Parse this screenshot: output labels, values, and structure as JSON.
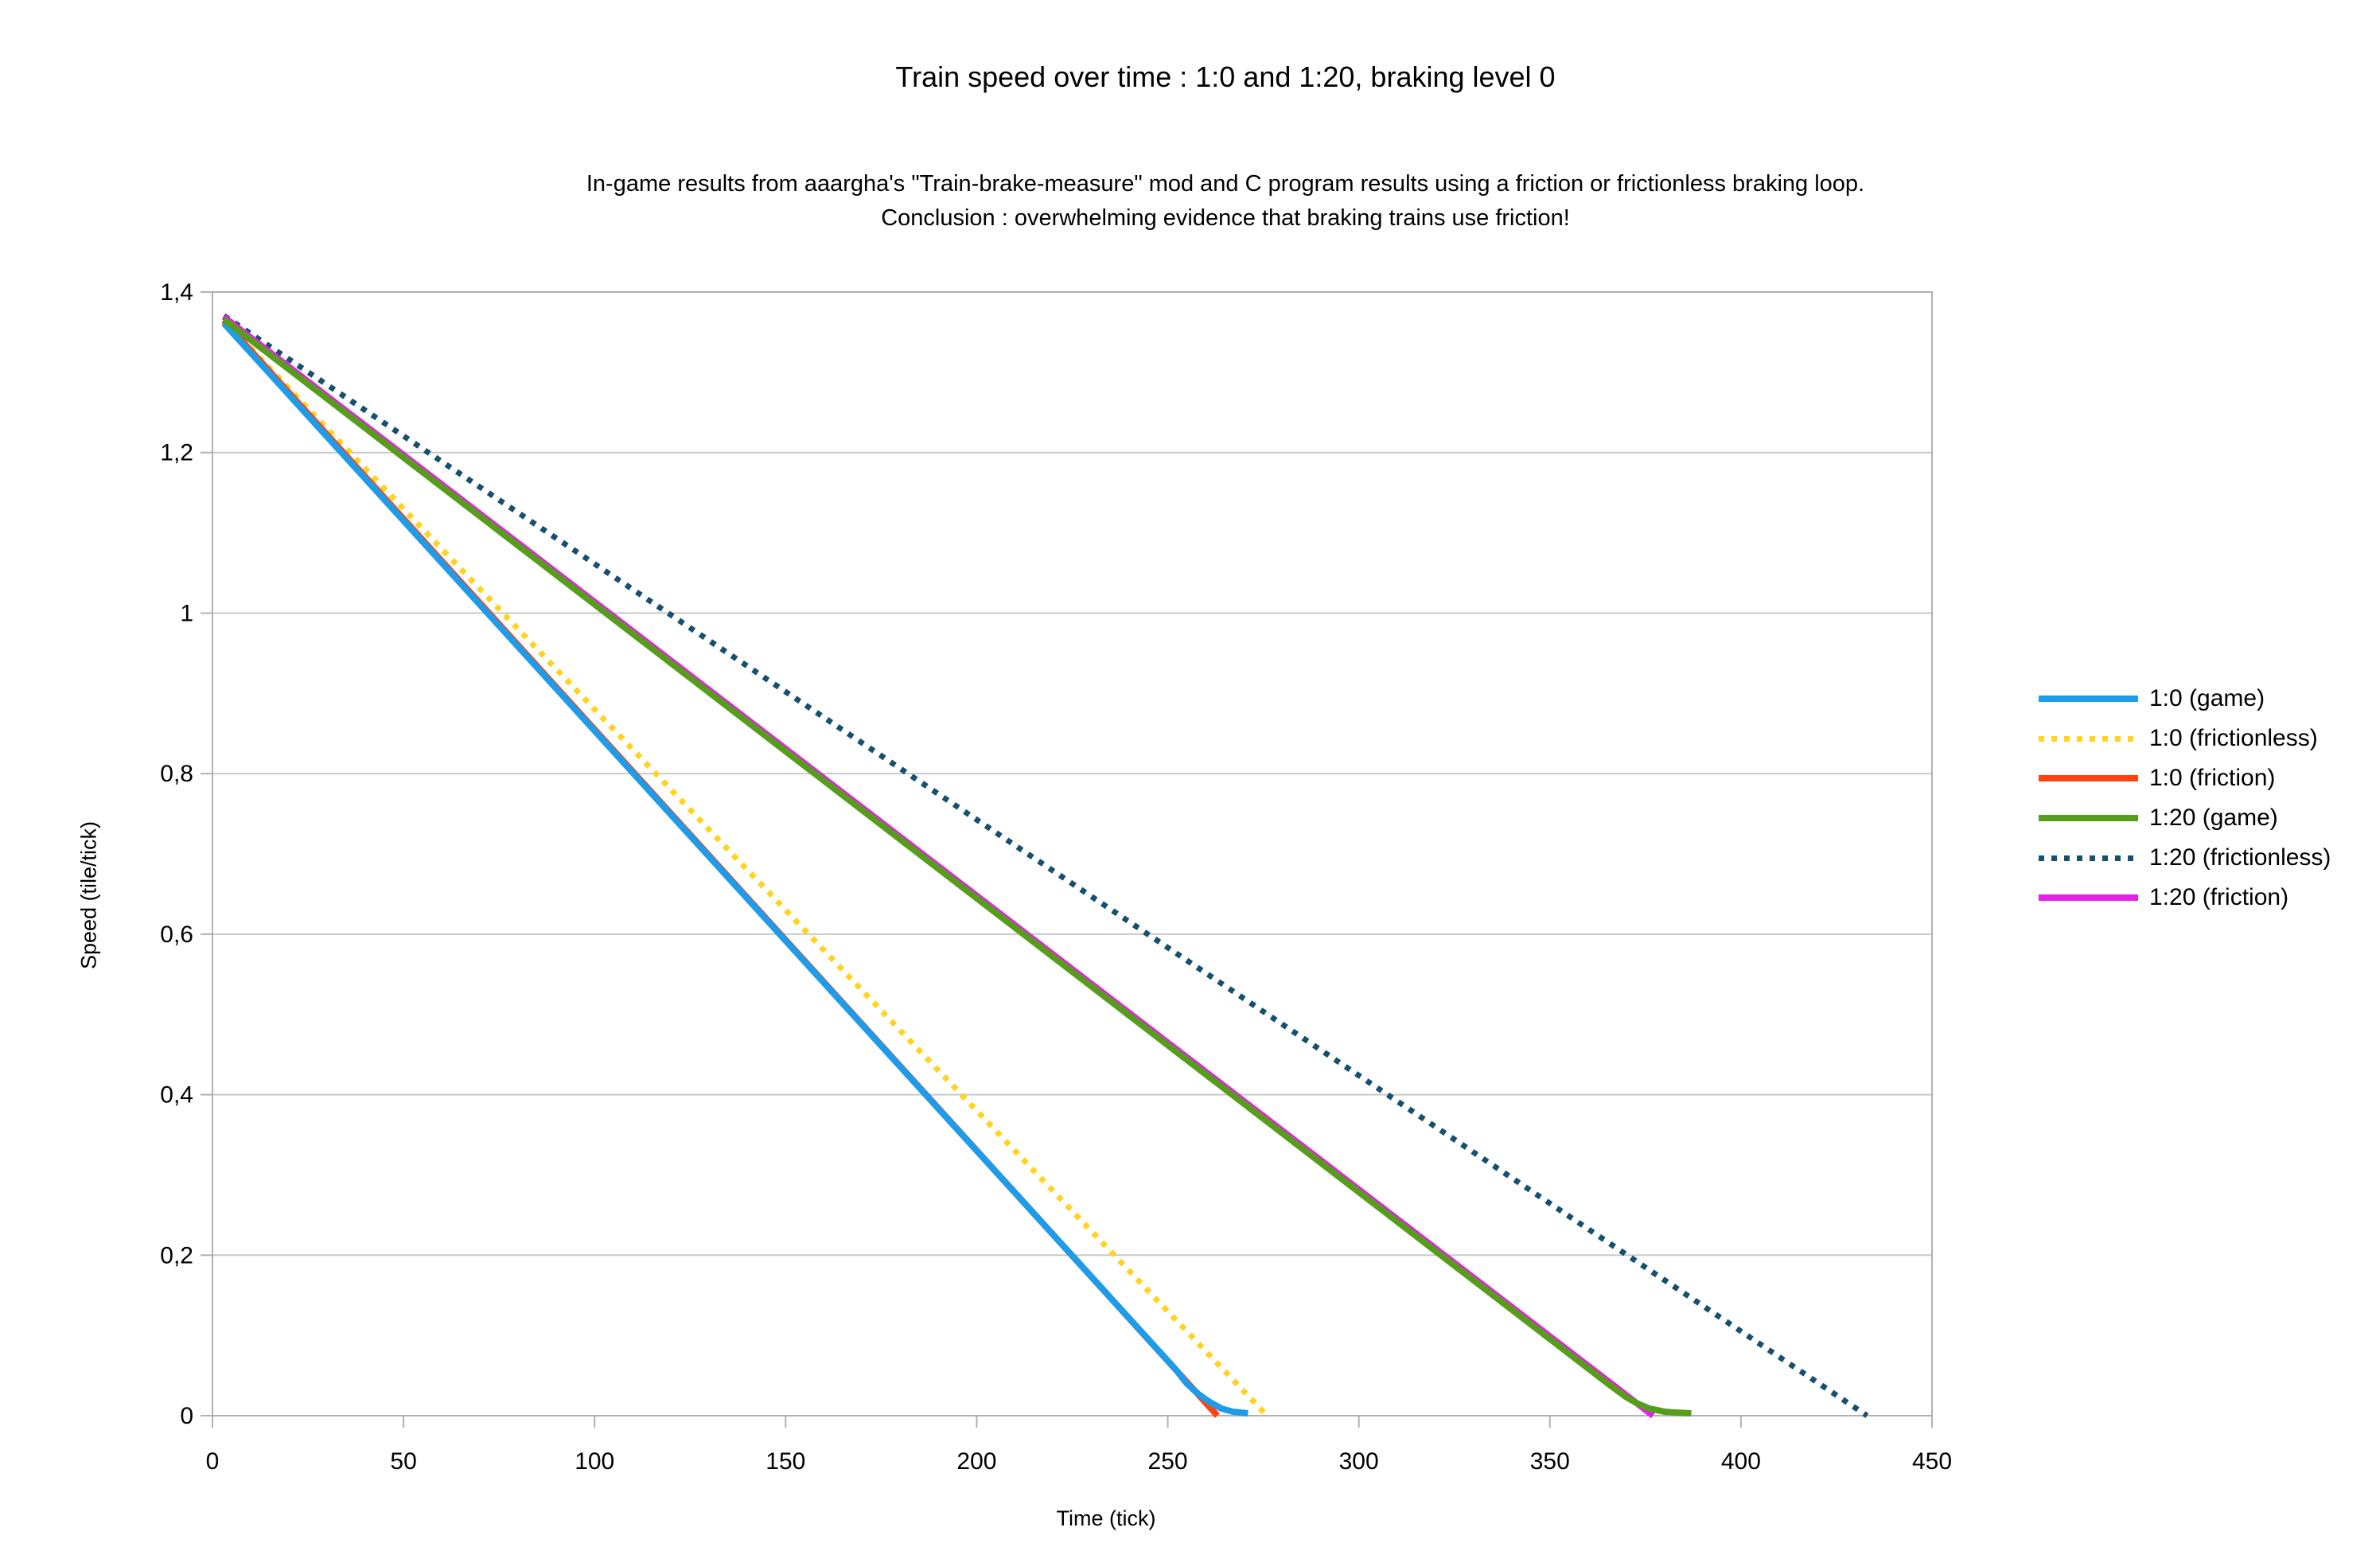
{
  "title": "Train speed over time : 1:0 and 1:20, braking level 0",
  "subtitle_line1": "In-game results from aaargha's \"Train-brake-measure\" mod and C program results using a friction or frictionless braking loop.",
  "subtitle_line2": "Conclusion : overwhelming evidence that braking trains use friction!",
  "chart_data": {
    "type": "line",
    "title": "Train speed over time : 1:0 and 1:20, braking level 0",
    "xlabel": "Time (tick)",
    "ylabel": "Speed (tile/tick)",
    "xlim": [
      0,
      450
    ],
    "ylim": [
      0,
      1.4
    ],
    "grid": "horizontal",
    "legend_position": "right",
    "start_speed": 1.38,
    "x_ticks": {
      "values": [
        0,
        50,
        100,
        150,
        200,
        250,
        300,
        350,
        400,
        450
      ],
      "labels": [
        "0",
        "50",
        "100",
        "150",
        "200",
        "250",
        "300",
        "350",
        "400",
        "450"
      ]
    },
    "y_ticks": {
      "values": [
        0,
        0.2,
        0.4,
        0.6,
        0.8,
        1,
        1.2,
        1.4
      ],
      "labels": [
        "0",
        "0,2",
        "0,4",
        "0,6",
        "0,8",
        "1",
        "1,2",
        "1,4"
      ]
    },
    "axis_color": "#b1b1b1",
    "grid_color": "#c9c9c9",
    "series": [
      {
        "name": "1:0 (game)",
        "color": "#1E9BE9",
        "style": "solid",
        "points": [
          [
            3,
            1.361
          ],
          [
            252,
            0.058
          ],
          [
            255,
            0.04
          ],
          [
            258,
            0.027
          ],
          [
            261,
            0.017
          ],
          [
            264,
            0.009
          ],
          [
            267,
            0.005
          ],
          [
            271,
            0.003
          ]
        ]
      },
      {
        "name": "1:0 (frictionless)",
        "color": "#FFD320",
        "style": "dotted",
        "points": [
          [
            3,
            1.365
          ],
          [
            276,
            0
          ]
        ]
      },
      {
        "name": "1:0 (friction)",
        "color": "#FF420E",
        "style": "solid",
        "points": [
          [
            3,
            1.364
          ],
          [
            263,
            0
          ]
        ]
      },
      {
        "name": "1:20 (game)",
        "color": "#579D1C",
        "style": "solid",
        "points": [
          [
            3,
            1.366
          ],
          [
            366,
            0.037
          ],
          [
            370,
            0.023
          ],
          [
            373,
            0.015
          ],
          [
            376,
            0.009
          ],
          [
            380,
            0.005
          ],
          [
            383,
            0.004
          ],
          [
            387,
            0.003
          ]
        ]
      },
      {
        "name": "1:20 (frictionless)",
        "color": "#17506F",
        "style": "dotted",
        "points": [
          [
            3,
            1.3705
          ],
          [
            433,
            0
          ]
        ]
      },
      {
        "name": "1:20 (friction)",
        "color": "#E520E5",
        "style": "solid",
        "points": [
          [
            3,
            1.369
          ],
          [
            377,
            0
          ]
        ]
      }
    ]
  }
}
